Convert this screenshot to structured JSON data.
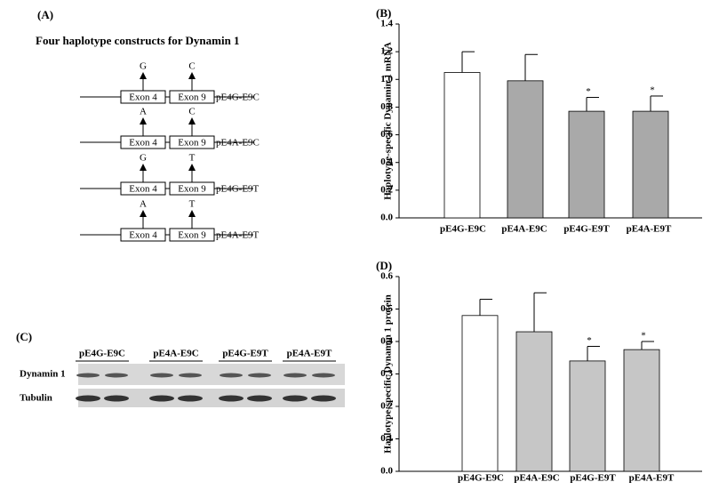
{
  "panel_a": {
    "label": "(A)",
    "title": "Four haplotype constructs for Dynamin 1",
    "constructs": [
      {
        "allele_1": "G",
        "allele_2": "C",
        "exon_1": "Exon 4",
        "exon_2": "Exon 9",
        "name": "pE4G-E9C"
      },
      {
        "allele_1": "A",
        "allele_2": "C",
        "exon_1": "Exon 4",
        "exon_2": "Exon 9",
        "name": "pE4A-E9C"
      },
      {
        "allele_1": "G",
        "allele_2": "T",
        "exon_1": "Exon 4",
        "exon_2": "Exon 9",
        "name": "pE4G-E9T"
      },
      {
        "allele_1": "A",
        "allele_2": "T",
        "exon_1": "Exon 4",
        "exon_2": "Exon 9",
        "name": "pE4A-E9T"
      }
    ]
  },
  "panel_c": {
    "label": "(C)",
    "lanes": [
      "pE4G-E9C",
      "pE4A-E9C",
      "pE4G-E9T",
      "pE4A-E9T"
    ],
    "rows": [
      "Dynamin 1",
      "Tubulin"
    ]
  },
  "chart_data": [
    {
      "type": "bar",
      "panel_label": "(B)",
      "y_label": "Haplotype-specific Dynamin 1 mRNA",
      "categories": [
        "pE4G-E9C",
        "pE4A-E9C",
        "pE4G-E9T",
        "pE4A-E9T"
      ],
      "values": [
        1.05,
        0.99,
        0.77,
        0.77
      ],
      "errors": [
        0.15,
        0.19,
        0.1,
        0.11
      ],
      "colors": [
        "#ffffff",
        "#a9a9a9",
        "#a9a9a9",
        "#a9a9a9"
      ],
      "significance": [
        null,
        null,
        "*",
        "*"
      ],
      "ylim": [
        0,
        1.4
      ],
      "yticks": [
        {
          "value": 0,
          "label": "0.0"
        },
        0.2,
        0.4,
        0.6,
        0.8,
        {
          "value": 1,
          "label": "1.0"
        },
        1.2,
        1.4
      ]
    },
    {
      "type": "bar",
      "panel_label": "(D)",
      "y_label": "Haplotype-specific Dynamin 1 protein",
      "categories": [
        "pE4G-E9C",
        "pE4A-E9C",
        "pE4G-E9T",
        "pE4A-E9T"
      ],
      "values": [
        0.48,
        0.43,
        0.34,
        0.375
      ],
      "errors": [
        0.05,
        0.12,
        0.045,
        0.025
      ],
      "colors": [
        "#ffffff",
        "#c6c6c6",
        "#c6c6c6",
        "#c6c6c6"
      ],
      "significance": [
        null,
        null,
        "*",
        "*"
      ],
      "ylim": [
        0,
        0.6
      ],
      "yticks": [
        {
          "value": 0,
          "label": "0.0"
        },
        0.1,
        0.2,
        0.3,
        0.4,
        0.5,
        0.6
      ]
    }
  ]
}
